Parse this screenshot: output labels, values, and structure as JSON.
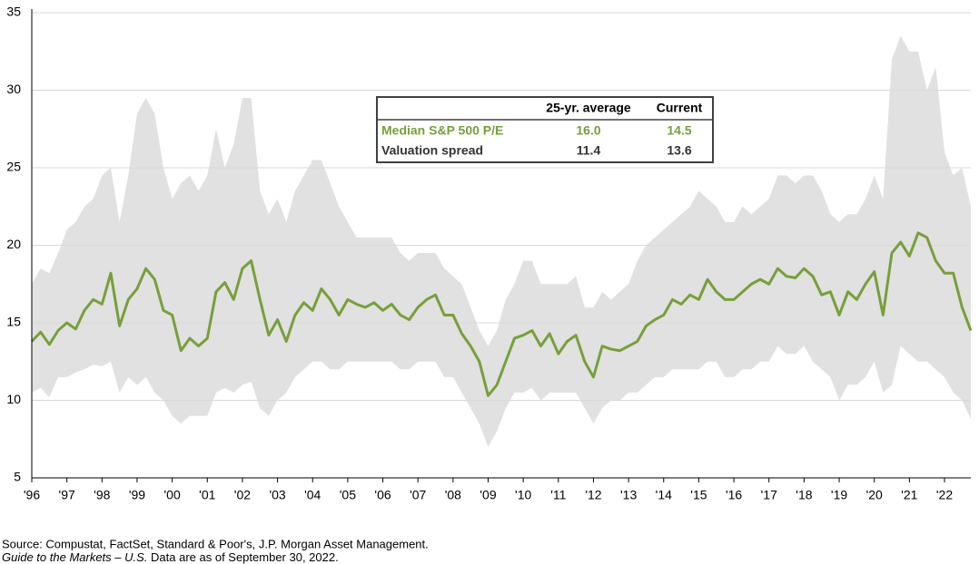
{
  "chart_data": {
    "type": "line",
    "x": [
      1996,
      1996.25,
      1996.5,
      1996.75,
      1997,
      1997.25,
      1997.5,
      1997.75,
      1998,
      1998.25,
      1998.5,
      1998.75,
      1999,
      1999.25,
      1999.5,
      1999.75,
      2000,
      2000.25,
      2000.5,
      2000.75,
      2001,
      2001.25,
      2001.5,
      2001.75,
      2002,
      2002.25,
      2002.5,
      2002.75,
      2003,
      2003.25,
      2003.5,
      2003.75,
      2004,
      2004.25,
      2004.5,
      2004.75,
      2005,
      2005.25,
      2005.5,
      2005.75,
      2006,
      2006.25,
      2006.5,
      2006.75,
      2007,
      2007.25,
      2007.5,
      2007.75,
      2008,
      2008.25,
      2008.5,
      2008.75,
      2009,
      2009.25,
      2009.5,
      2009.75,
      2010,
      2010.25,
      2010.5,
      2010.75,
      2011,
      2011.25,
      2011.5,
      2011.75,
      2012,
      2012.25,
      2012.5,
      2012.75,
      2013,
      2013.25,
      2013.5,
      2013.75,
      2014,
      2014.25,
      2014.5,
      2014.75,
      2015,
      2015.25,
      2015.5,
      2015.75,
      2016,
      2016.25,
      2016.5,
      2016.75,
      2017,
      2017.25,
      2017.5,
      2017.75,
      2018,
      2018.25,
      2018.5,
      2018.75,
      2019,
      2019.25,
      2019.5,
      2019.75,
      2020,
      2020.25,
      2020.5,
      2020.75,
      2021,
      2021.25,
      2021.5,
      2021.75,
      2022,
      2022.25,
      2022.5,
      2022.75
    ],
    "series": [
      {
        "color": "#76a03a",
        "values": [
          13.8,
          14.4,
          13.6,
          14.5,
          15.0,
          14.6,
          15.8,
          16.5,
          16.2,
          18.2,
          14.8,
          16.5,
          17.2,
          18.5,
          17.8,
          15.8,
          15.5,
          13.2,
          14.0,
          13.5,
          14.0,
          17.0,
          17.6,
          16.5,
          18.5,
          19.0,
          16.5,
          14.2,
          15.2,
          13.8,
          15.5,
          16.3,
          15.8,
          17.2,
          16.5,
          15.5,
          16.5,
          16.2,
          16.0,
          16.3,
          15.8,
          16.2,
          15.5,
          15.2,
          16.0,
          16.5,
          16.8,
          15.5,
          15.5,
          14.3,
          13.5,
          12.5,
          10.3,
          11.0,
          12.5,
          14.0,
          14.2,
          14.5,
          13.5,
          14.3,
          13.0,
          13.8,
          14.2,
          12.5,
          11.5,
          13.5,
          13.3,
          13.2,
          13.5,
          13.8,
          14.8,
          15.2,
          15.5,
          16.5,
          16.2,
          16.8,
          16.5,
          17.8,
          17.0,
          16.5,
          16.5,
          17.0,
          17.5,
          17.8,
          17.5,
          18.5,
          18.0,
          17.9,
          18.5,
          18.0,
          16.8,
          17.0,
          15.5,
          17.0,
          16.5,
          17.5,
          18.3,
          15.5,
          19.5,
          20.2,
          19.3,
          20.8,
          20.5,
          19.0,
          18.2,
          18.2,
          16.0,
          14.5
        ]
      }
    ],
    "band": {
      "color": "#e1e1e1",
      "upper": [
        17.5,
        18.5,
        18.2,
        19.5,
        21.0,
        21.5,
        22.5,
        23.0,
        24.5,
        25.0,
        21.5,
        24.5,
        28.5,
        29.5,
        28.5,
        25.0,
        23.0,
        24.0,
        24.5,
        23.5,
        24.5,
        27.5,
        25.0,
        26.5,
        29.5,
        29.5,
        23.5,
        22.0,
        23.0,
        21.5,
        23.5,
        24.5,
        25.5,
        25.5,
        24.0,
        22.5,
        21.5,
        20.5,
        20.5,
        20.5,
        20.5,
        20.5,
        19.5,
        19.0,
        19.5,
        19.5,
        19.5,
        18.5,
        18.0,
        17.5,
        16.0,
        14.5,
        13.5,
        14.5,
        16.5,
        17.5,
        19.0,
        19.0,
        17.5,
        17.5,
        17.5,
        17.5,
        18.0,
        16.0,
        16.0,
        17.0,
        16.5,
        17.0,
        17.5,
        19.0,
        20.0,
        20.5,
        21.0,
        21.5,
        22.0,
        22.5,
        23.5,
        23.0,
        22.5,
        21.5,
        21.5,
        22.5,
        22.0,
        22.5,
        23.0,
        24.5,
        24.5,
        24.0,
        24.5,
        24.5,
        23.5,
        22.0,
        21.5,
        22.0,
        22.0,
        23.0,
        24.5,
        23.0,
        32.0,
        33.5,
        32.5,
        32.5,
        30.0,
        31.5,
        26.0,
        24.5,
        25.0,
        22.5
      ],
      "lower": [
        10.5,
        10.8,
        10.2,
        11.5,
        11.5,
        11.8,
        12.0,
        12.3,
        12.2,
        12.5,
        10.5,
        11.5,
        11.0,
        11.5,
        10.5,
        10.0,
        9.0,
        8.5,
        9.0,
        9.0,
        9.0,
        10.5,
        10.8,
        10.5,
        11.0,
        11.2,
        9.5,
        9.0,
        10.0,
        10.5,
        11.5,
        12.0,
        12.5,
        12.5,
        12.0,
        12.0,
        12.5,
        12.5,
        12.5,
        12.5,
        12.5,
        12.5,
        12.0,
        12.0,
        12.5,
        12.5,
        12.5,
        11.5,
        11.5,
        10.5,
        9.5,
        8.5,
        7.0,
        8.0,
        9.5,
        10.5,
        10.5,
        10.8,
        10.0,
        10.5,
        10.5,
        10.5,
        10.5,
        9.5,
        8.5,
        9.5,
        10.0,
        10.0,
        10.5,
        10.5,
        11.0,
        11.5,
        11.5,
        12.0,
        12.0,
        12.0,
        12.0,
        12.5,
        12.5,
        11.5,
        11.5,
        12.0,
        12.0,
        12.5,
        12.5,
        13.5,
        13.0,
        13.0,
        13.5,
        12.5,
        12.0,
        11.5,
        10.0,
        11.0,
        11.0,
        11.5,
        12.5,
        10.5,
        11.0,
        13.5,
        13.0,
        12.5,
        12.5,
        12.0,
        11.5,
        10.5,
        10.0,
        8.8
      ]
    },
    "xlim": [
      1996,
      2022.75
    ],
    "xticks": [
      {
        "value": 1996,
        "label": "'96"
      },
      {
        "value": 1997,
        "label": "'97"
      },
      {
        "value": 1998,
        "label": "'98"
      },
      {
        "value": 1999,
        "label": "'99"
      },
      {
        "value": 2000,
        "label": "'00"
      },
      {
        "value": 2001,
        "label": "'01"
      },
      {
        "value": 2002,
        "label": "'02"
      },
      {
        "value": 2003,
        "label": "'03"
      },
      {
        "value": 2004,
        "label": "'04"
      },
      {
        "value": 2005,
        "label": "'05"
      },
      {
        "value": 2006,
        "label": "'06"
      },
      {
        "value": 2007,
        "label": "'07"
      },
      {
        "value": 2008,
        "label": "'08"
      },
      {
        "value": 2009,
        "label": "'09"
      },
      {
        "value": 2010,
        "label": "'10"
      },
      {
        "value": 2011,
        "label": "'11"
      },
      {
        "value": 2012,
        "label": "'12"
      },
      {
        "value": 2013,
        "label": "'13"
      },
      {
        "value": 2014,
        "label": "'14"
      },
      {
        "value": 2015,
        "label": "'15"
      },
      {
        "value": 2016,
        "label": "'16"
      },
      {
        "value": 2017,
        "label": "'17"
      },
      {
        "value": 2018,
        "label": "'18"
      },
      {
        "value": 2019,
        "label": "'19"
      },
      {
        "value": 2020,
        "label": "'20"
      },
      {
        "value": 2021,
        "label": "'21"
      },
      {
        "value": 2022,
        "label": "'22"
      }
    ],
    "ylim": [
      5,
      35
    ],
    "yticks": [
      5,
      10,
      15,
      20,
      25,
      30,
      35
    ],
    "grid": true,
    "table": {
      "header": [
        "25-yr. average",
        "Current"
      ],
      "rows": [
        [
          "Median S&P 500 P/E",
          "16.0",
          "14.5"
        ],
        [
          "Valuation spread",
          "11.4",
          "13.6"
        ]
      ]
    },
    "source": "Source: Compustat, FactSet, Standard & Poor's, J.P. Morgan Asset Management.",
    "note_italic": "Guide to the Markets – U.S.",
    "note": " Data are as of September 30, 2022."
  }
}
